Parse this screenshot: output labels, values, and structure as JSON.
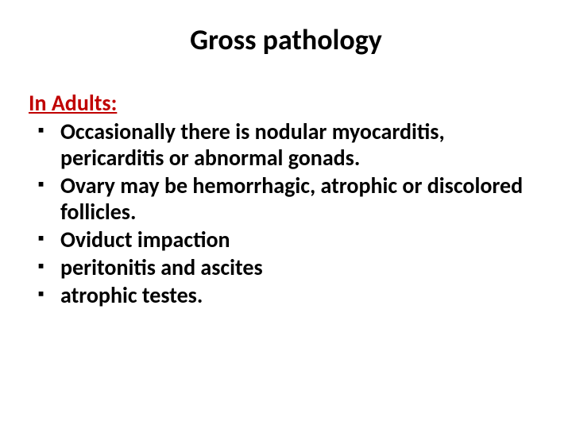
{
  "slide": {
    "title": "Gross pathology",
    "subheading": "In Adults:",
    "bullets": [
      "Occasionally there is nodular myocarditis, pericarditis or abnormal gonads.",
      "Ovary may be hemorrhagic, atrophic or discolored follicles.",
      "Oviduct impaction",
      "peritonitis and ascites",
      "atrophic testes."
    ],
    "style": {
      "background_color": "#ffffff",
      "title_color": "#000000",
      "title_fontsize": 36,
      "title_fontweight": 700,
      "subheading_color": "#c00000",
      "subheading_fontsize": 28,
      "subheading_fontweight": 700,
      "subheading_underline": true,
      "body_color": "#000000",
      "body_fontsize": 28,
      "body_fontweight": 700,
      "bullet_marker": "square",
      "bullet_marker_color": "#000000",
      "font_family": "Calibri"
    }
  }
}
